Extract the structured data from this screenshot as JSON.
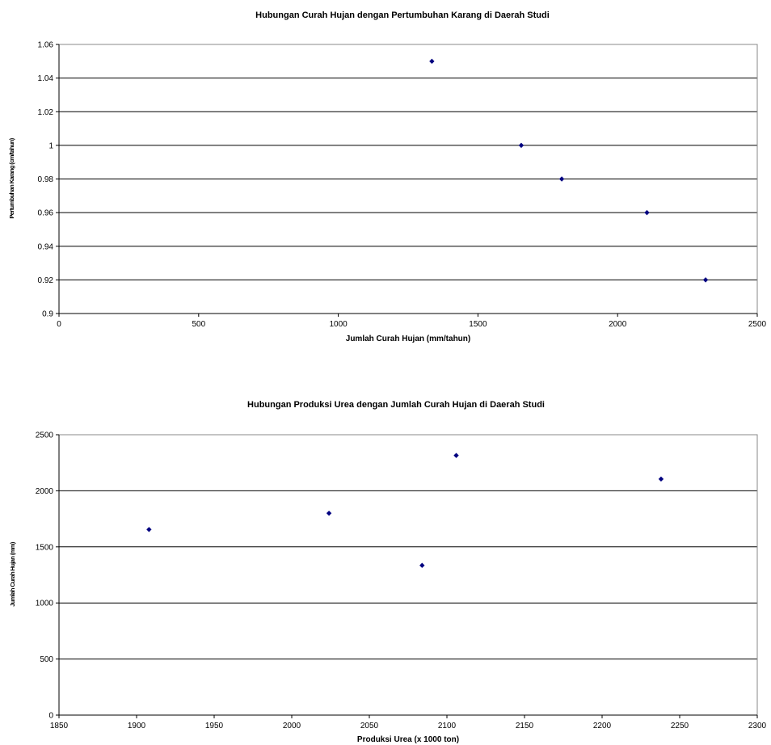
{
  "chart_data": [
    {
      "type": "scatter",
      "title": "Hubungan Curah Hujan dengan Pertumbuhan Karang di Daerah Studi",
      "xlabel": "Jumlah Curah Hujan (mm/tahun)",
      "ylabel": "Pertumbuhan Karang (cm/tahun)",
      "xlim": [
        0,
        2500
      ],
      "ylim": [
        0.9,
        1.06
      ],
      "xticks": [
        "0",
        "500",
        "1000",
        "1500",
        "2000",
        "2500"
      ],
      "yticks": [
        "0.9",
        "0.92",
        "0.94",
        "0.96",
        "0.98",
        "1",
        "1.02",
        "1.04",
        "1.06"
      ],
      "grid": "horizontal",
      "legend": "none",
      "marker_color": "#000080",
      "series": [
        {
          "points": [
            {
              "x": 1335,
              "y": 1.05
            },
            {
              "x": 1655,
              "y": 1.0
            },
            {
              "x": 1800,
              "y": 0.98
            },
            {
              "x": 2105,
              "y": 0.96
            },
            {
              "x": 2315,
              "y": 0.92
            }
          ]
        }
      ]
    },
    {
      "type": "scatter",
      "title": "Hubungan Produksi Urea dengan Jumlah Curah Hujan di Daerah Studi",
      "xlabel": "Produksi Urea (x 1000 ton)",
      "ylabel": "Jumlah Curah Hujan (mm)",
      "xlim": [
        1850,
        2300
      ],
      "ylim": [
        0,
        2500
      ],
      "xticks": [
        "1850",
        "1900",
        "1950",
        "2000",
        "2050",
        "2100",
        "2150",
        "2200",
        "2250",
        "2300"
      ],
      "yticks": [
        "0",
        "500",
        "1000",
        "1500",
        "2000",
        "2500"
      ],
      "grid": "horizontal",
      "legend": "none",
      "marker_color": "#000080",
      "series": [
        {
          "points": [
            {
              "x": 1908,
              "y": 1655
            },
            {
              "x": 2024,
              "y": 1800
            },
            {
              "x": 2084,
              "y": 1335
            },
            {
              "x": 2106,
              "y": 2315
            },
            {
              "x": 2238,
              "y": 2105
            }
          ]
        }
      ]
    }
  ]
}
